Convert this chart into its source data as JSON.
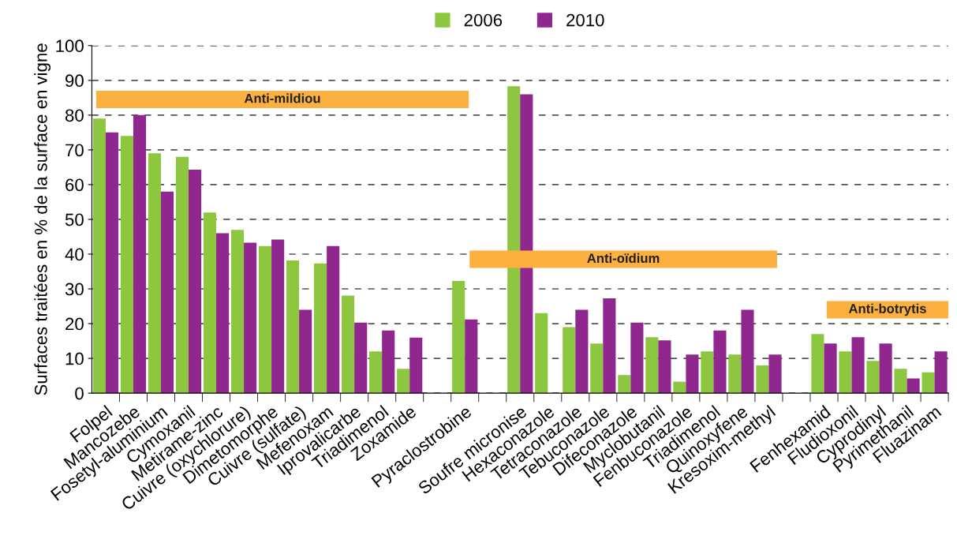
{
  "chart_data": {
    "type": "bar",
    "ylabel": "Surfaces traitées en % de la surface en vigne",
    "categories": [
      "Folpel",
      "Mancozebe",
      "Fosetyl-aluminium",
      "Cymoxanil",
      "Metirame-zinc",
      "Cuivre (oxychlorure)",
      "Dimetomorphe",
      "Cuivre (sulfate)",
      "Mefenoxam",
      "Iprovalicarbe",
      "Triadimenol",
      "Zoxamide",
      null,
      "Pyraclostrobine",
      null,
      "Soufre micronise",
      "Hexaconazole",
      "Tetraconazole",
      "Tebuconazole",
      "Difeconazole",
      "Myclobutanil",
      "Fenbuconazole",
      "Triadimenol",
      "Quinoxyfene",
      "Kresoxim-methyl",
      null,
      "Fenhexamid",
      "Fludioxonil",
      "Cyprodinyl",
      "Pyrimethanil",
      "Fluazinam"
    ],
    "series": [
      {
        "name": "2006",
        "color": "#8dc63f",
        "values": [
          79,
          74,
          69,
          68,
          52,
          47,
          42.3,
          38.2,
          37.3,
          28.1,
          12,
          7,
          null,
          32.3,
          null,
          88.3,
          23,
          19,
          14.3,
          5.2,
          16.1,
          3.3,
          12,
          11.1,
          8,
          null,
          17,
          12,
          9.3,
          7,
          6
        ]
      },
      {
        "name": "2010",
        "color": "#90278e",
        "values": [
          75,
          80,
          58,
          64.3,
          46,
          43.3,
          44.2,
          24,
          42.3,
          20.3,
          18,
          16,
          null,
          21.2,
          null,
          86,
          null,
          24,
          27.3,
          20.3,
          15.2,
          11.1,
          18,
          24,
          11.1,
          null,
          14.3,
          16.1,
          14.3,
          4.2,
          12
        ]
      }
    ],
    "ylim": [
      0,
      100
    ],
    "yticks": [
      0,
      10,
      20,
      30,
      40,
      50,
      60,
      70,
      80,
      90,
      100
    ],
    "grid": "y",
    "legend": "top",
    "annotations": [
      "Anti-mildiou",
      "Anti-oïdium",
      "Anti-botrytis"
    ]
  }
}
